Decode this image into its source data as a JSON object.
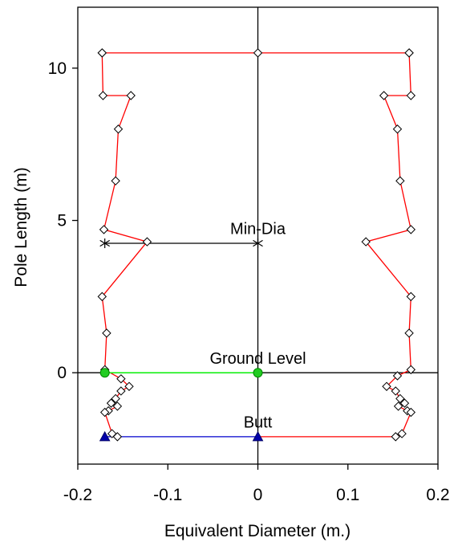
{
  "chart_data": {
    "type": "line",
    "xlabel": "Equivalent Diameter (m.)",
    "ylabel": "Pole Length (m)",
    "xlim": [
      -0.2,
      0.2
    ],
    "ylim": [
      -3.0,
      12.0
    ],
    "x_ticks": [
      -0.2,
      -0.1,
      0,
      0.1,
      0.2
    ],
    "x_tick_labels": [
      "-0.2",
      "-0.1",
      "0",
      "0.1",
      "0.2"
    ],
    "y_ticks": [
      0,
      5,
      10
    ],
    "y_tick_labels": [
      "0",
      "5",
      "10"
    ],
    "grid": false,
    "reference_lines": {
      "x": 0,
      "y": 0
    },
    "series": [
      {
        "role": "left-profile",
        "color": "#ff0000",
        "marker": "diamond",
        "points": [
          [
            -0.173,
            10.5
          ],
          [
            -0.172,
            9.1
          ],
          [
            -0.141,
            9.1
          ],
          [
            -0.155,
            8.0
          ],
          [
            -0.158,
            6.3
          ],
          [
            -0.171,
            4.7
          ],
          [
            -0.123,
            4.3
          ],
          [
            -0.173,
            2.5
          ],
          [
            -0.168,
            1.3
          ],
          [
            -0.17,
            0.1
          ],
          [
            -0.152,
            -0.2
          ],
          [
            -0.143,
            -0.45
          ],
          [
            -0.152,
            -0.6
          ],
          [
            -0.158,
            -0.85
          ],
          [
            -0.163,
            -1.0
          ],
          [
            -0.156,
            -1.1
          ],
          [
            -0.166,
            -1.25
          ],
          [
            -0.17,
            -1.3
          ],
          [
            -0.162,
            -2.0
          ],
          [
            -0.156,
            -2.1
          ]
        ]
      },
      {
        "role": "right-profile",
        "color": "#ff0000",
        "marker": "diamond",
        "points": [
          [
            0.168,
            10.5
          ],
          [
            0.17,
            9.1
          ],
          [
            0.14,
            9.1
          ],
          [
            0.155,
            8.0
          ],
          [
            0.158,
            6.3
          ],
          [
            0.17,
            4.7
          ],
          [
            0.12,
            4.3
          ],
          [
            0.17,
            2.5
          ],
          [
            0.168,
            1.3
          ],
          [
            0.17,
            0.1
          ],
          [
            0.155,
            -0.1
          ],
          [
            0.143,
            -0.45
          ],
          [
            0.153,
            -0.6
          ],
          [
            0.158,
            -0.85
          ],
          [
            0.163,
            -1.0
          ],
          [
            0.156,
            -1.1
          ],
          [
            0.166,
            -1.25
          ],
          [
            0.17,
            -1.3
          ],
          [
            0.16,
            -2.0
          ],
          [
            0.153,
            -2.1
          ]
        ]
      },
      {
        "role": "top-line",
        "color": "#ff0000",
        "marker": "diamond",
        "points": [
          [
            -0.173,
            10.5
          ],
          [
            0,
            10.5
          ],
          [
            0.168,
            10.5
          ]
        ]
      },
      {
        "role": "min-dia",
        "name": "Min-Dia",
        "color": "#000000",
        "marker": "asterisk",
        "points": [
          [
            -0.17,
            4.25
          ],
          [
            0,
            4.25
          ]
        ]
      },
      {
        "role": "ground-level",
        "name": "Ground Level",
        "color": "#00ff00",
        "marker": "circle",
        "points": [
          [
            -0.17,
            0
          ],
          [
            0,
            0
          ]
        ]
      },
      {
        "role": "butt",
        "name": "Butt",
        "color": "#0000cc",
        "marker": "triangle",
        "points": [
          [
            -0.17,
            -2.1
          ],
          [
            0,
            -2.1
          ]
        ]
      },
      {
        "role": "butt-right",
        "color": "#ff0000",
        "marker": "none",
        "points": [
          [
            0,
            -2.1
          ],
          [
            0.153,
            -2.1
          ]
        ]
      }
    ],
    "annotations": [
      {
        "text": "Min-Dia",
        "x": 0.0,
        "y": 4.55
      },
      {
        "text": "Ground Level",
        "x": 0.0,
        "y": 0.3
      },
      {
        "text": "Butt",
        "x": 0.0,
        "y": -1.8
      }
    ]
  }
}
